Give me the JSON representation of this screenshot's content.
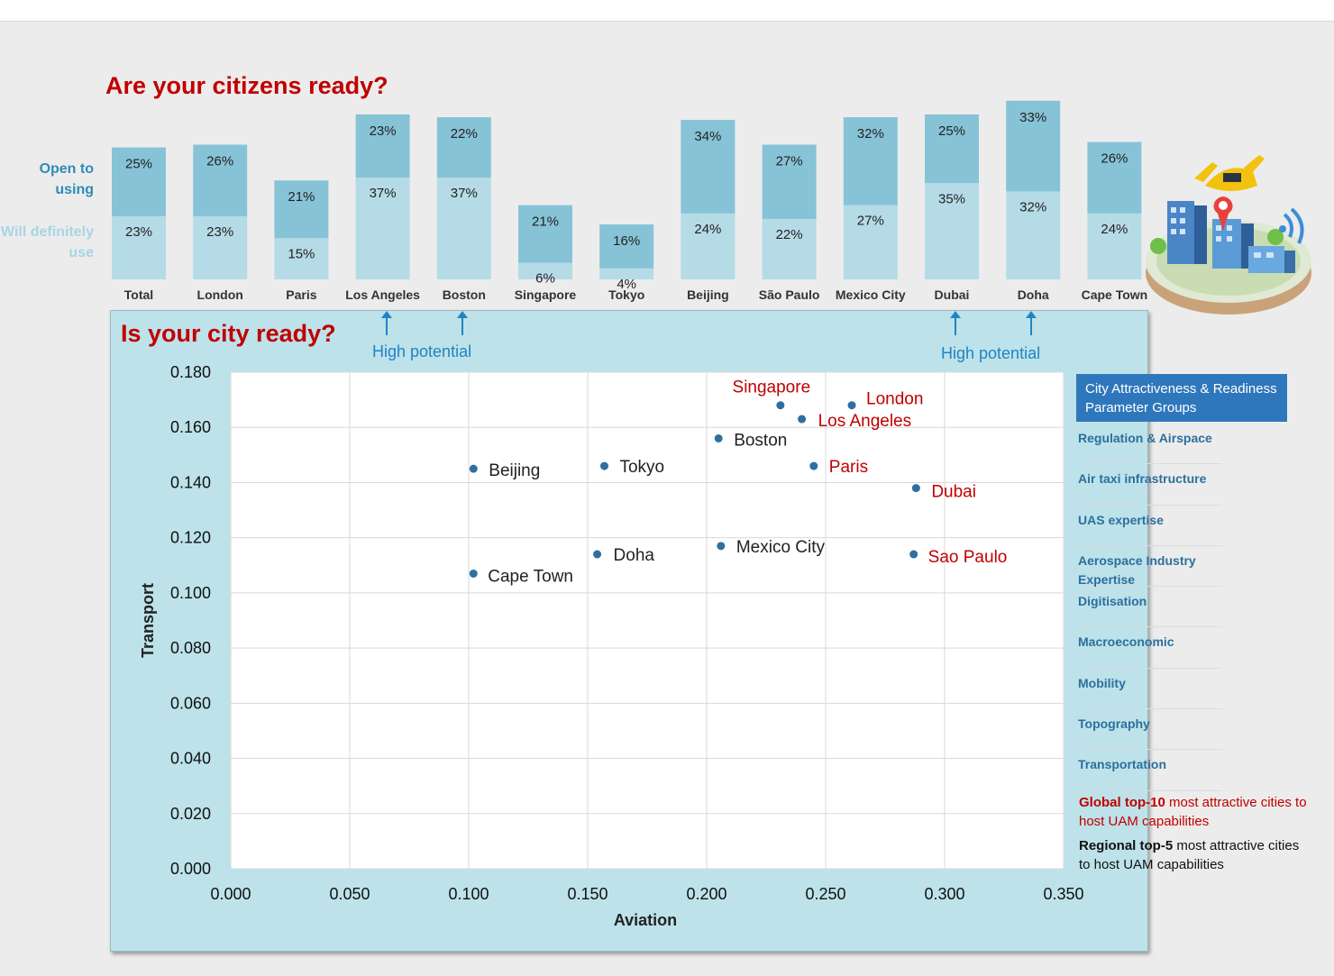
{
  "titles": {
    "citizens": "Are your citizens ready?",
    "city": "Is your city ready?"
  },
  "legend_labels": {
    "open": "Open to using",
    "will": "Will definitely use"
  },
  "colors": {
    "open": "#87c3d7",
    "will": "#b5dbe7",
    "red_title": "#c00000",
    "highlight_city": "#c00000",
    "point": "#2f6f9f",
    "accent_blue": "#1f84c4",
    "legend_header": "#2f77bc"
  },
  "high_potential": {
    "left": "High potential",
    "right": "High potential"
  },
  "chart_data": [
    {
      "type": "bar",
      "stacked": true,
      "title": "Are your citizens ready?",
      "categories": [
        "Total",
        "London",
        "Paris",
        "Los Angeles",
        "Boston",
        "Singapore",
        "Tokyo",
        "Beijing",
        "São Paulo",
        "Mexico City",
        "Dubai",
        "Doha",
        "Cape Town"
      ],
      "series": [
        {
          "name": "Will definitely use",
          "values": [
            23,
            23,
            15,
            37,
            37,
            6,
            4,
            24,
            22,
            27,
            35,
            32,
            24
          ]
        },
        {
          "name": "Open to using",
          "values": [
            25,
            26,
            21,
            23,
            22,
            21,
            16,
            34,
            27,
            32,
            25,
            33,
            26
          ]
        }
      ],
      "value_format": "percent",
      "annotations": [
        {
          "text": "High potential",
          "categories": [
            "Los Angeles",
            "Boston"
          ]
        },
        {
          "text": "High potential",
          "categories": [
            "Dubai",
            "Doha"
          ]
        }
      ]
    },
    {
      "type": "scatter",
      "title": "Is your city ready?",
      "xlabel": "Aviation",
      "ylabel": "Transport",
      "xlim": [
        0,
        0.35
      ],
      "ylim": [
        0,
        0.18
      ],
      "xticks": [
        "0.000",
        "0.050",
        "0.100",
        "0.150",
        "0.200",
        "0.250",
        "0.300",
        "0.350"
      ],
      "yticks": [
        "0.000",
        "0.020",
        "0.040",
        "0.060",
        "0.080",
        "0.100",
        "0.120",
        "0.140",
        "0.160",
        "0.180"
      ],
      "grid": true,
      "points": [
        {
          "label": "Singapore",
          "x": 0.231,
          "y": 0.168,
          "highlight": true
        },
        {
          "label": "London",
          "x": 0.261,
          "y": 0.168,
          "highlight": true
        },
        {
          "label": "Los Angeles",
          "x": 0.24,
          "y": 0.163,
          "highlight": true
        },
        {
          "label": "Boston",
          "x": 0.205,
          "y": 0.156,
          "highlight": false
        },
        {
          "label": "Paris",
          "x": 0.245,
          "y": 0.146,
          "highlight": true
        },
        {
          "label": "Dubai",
          "x": 0.288,
          "y": 0.138,
          "highlight": true
        },
        {
          "label": "Beijing",
          "x": 0.102,
          "y": 0.145,
          "highlight": false
        },
        {
          "label": "Tokyo",
          "x": 0.157,
          "y": 0.146,
          "highlight": false
        },
        {
          "label": "Mexico City",
          "x": 0.206,
          "y": 0.117,
          "highlight": false
        },
        {
          "label": "Sao Paulo",
          "x": 0.287,
          "y": 0.114,
          "highlight": true
        },
        {
          "label": "Doha",
          "x": 0.154,
          "y": 0.114,
          "highlight": false
        },
        {
          "label": "Cape Town",
          "x": 0.102,
          "y": 0.107,
          "highlight": false
        }
      ]
    }
  ],
  "legend": {
    "header": "City Attractiveness & Readiness Parameter Groups",
    "items": [
      "Regulation & Airspace",
      "Air taxi infrastructure",
      "UAS expertise",
      "Aerospace Industry Expertise",
      "Digitisation",
      "Macroeconomic",
      "Mobility",
      "Topography",
      "Transportation"
    ]
  },
  "notes": {
    "global_bold": "Global top-10",
    "global_rest": " most attractive cities to host UAM capabilities",
    "regional_bold": "Regional top-5",
    "regional_rest": " most attractive cities to host UAM capabilities"
  }
}
